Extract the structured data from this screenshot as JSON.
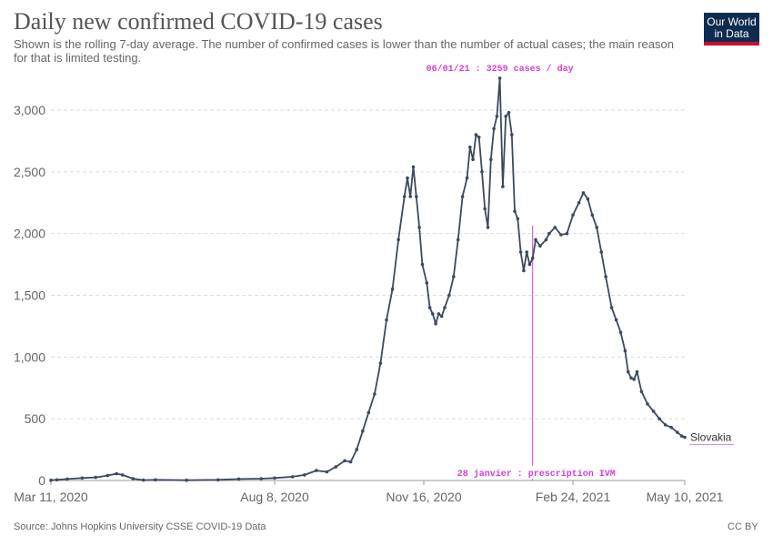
{
  "header": {
    "title": "Daily new confirmed COVID-19 cases",
    "subtitle": "Shown is the rolling 7-day average. The number of confirmed cases is lower than the number of actual cases; the main reason for that is limited testing.",
    "logo_line1": "Our World",
    "logo_line2": "in Data"
  },
  "footer": {
    "source": "Source: Johns Hopkins University CSSE COVID-19 Data",
    "license": "CC BY"
  },
  "colors": {
    "line": "#3c4a5e",
    "annotation": "#d33ed3",
    "grid": "#dddddd",
    "axis_text": "#666666"
  },
  "chart_data": {
    "type": "line",
    "title": "Daily new confirmed COVID-19 cases",
    "ylim": [
      0,
      3000
    ],
    "y_ticks": [
      0,
      500,
      1000,
      1500,
      2000,
      2500,
      3000
    ],
    "y_tick_labels": [
      "0",
      "500",
      "1,000",
      "1,500",
      "2,000",
      "2,500",
      "3,000"
    ],
    "x_ticks": [
      "2020-03-11",
      "2020-08-08",
      "2020-11-16",
      "2021-02-24",
      "2021-05-10"
    ],
    "x_tick_labels": [
      "Mar 11, 2020",
      "Aug 8, 2020",
      "Nov 16, 2020",
      "Feb 24, 2021",
      "May 10, 2021"
    ],
    "grid": "horizontal dashed",
    "series": [
      {
        "name": "Slovakia",
        "points": [
          [
            "2020-03-11",
            2
          ],
          [
            "2020-03-15",
            5
          ],
          [
            "2020-03-22",
            12
          ],
          [
            "2020-04-01",
            20
          ],
          [
            "2020-04-10",
            25
          ],
          [
            "2020-04-18",
            40
          ],
          [
            "2020-04-24",
            55
          ],
          [
            "2020-04-28",
            45
          ],
          [
            "2020-05-05",
            15
          ],
          [
            "2020-05-12",
            3
          ],
          [
            "2020-05-20",
            5
          ],
          [
            "2020-06-10",
            2
          ],
          [
            "2020-07-01",
            5
          ],
          [
            "2020-07-15",
            12
          ],
          [
            "2020-07-30",
            15
          ],
          [
            "2020-08-08",
            20
          ],
          [
            "2020-08-20",
            30
          ],
          [
            "2020-08-28",
            45
          ],
          [
            "2020-09-05",
            80
          ],
          [
            "2020-09-12",
            70
          ],
          [
            "2020-09-18",
            110
          ],
          [
            "2020-09-24",
            160
          ],
          [
            "2020-09-28",
            150
          ],
          [
            "2020-10-02",
            250
          ],
          [
            "2020-10-06",
            400
          ],
          [
            "2020-10-10",
            550
          ],
          [
            "2020-10-14",
            700
          ],
          [
            "2020-10-18",
            950
          ],
          [
            "2020-10-22",
            1300
          ],
          [
            "2020-10-26",
            1550
          ],
          [
            "2020-10-30",
            1950
          ],
          [
            "2020-11-03",
            2300
          ],
          [
            "2020-11-05",
            2450
          ],
          [
            "2020-11-07",
            2300
          ],
          [
            "2020-11-09",
            2540
          ],
          [
            "2020-11-11",
            2300
          ],
          [
            "2020-11-13",
            2050
          ],
          [
            "2020-11-15",
            1750
          ],
          [
            "2020-11-18",
            1600
          ],
          [
            "2020-11-20",
            1400
          ],
          [
            "2020-11-22",
            1350
          ],
          [
            "2020-11-24",
            1270
          ],
          [
            "2020-11-26",
            1350
          ],
          [
            "2020-11-28",
            1330
          ],
          [
            "2020-11-30",
            1400
          ],
          [
            "2020-12-03",
            1500
          ],
          [
            "2020-12-06",
            1650
          ],
          [
            "2020-12-09",
            1950
          ],
          [
            "2020-12-12",
            2300
          ],
          [
            "2020-12-15",
            2450
          ],
          [
            "2020-12-17",
            2700
          ],
          [
            "2020-12-19",
            2600
          ],
          [
            "2020-12-21",
            2800
          ],
          [
            "2020-12-23",
            2780
          ],
          [
            "2020-12-25",
            2500
          ],
          [
            "2020-12-27",
            2200
          ],
          [
            "2020-12-29",
            2050
          ],
          [
            "2020-12-31",
            2600
          ],
          [
            "2021-01-02",
            2850
          ],
          [
            "2021-01-04",
            2950
          ],
          [
            "2021-01-06",
            3259
          ],
          [
            "2021-01-08",
            2380
          ],
          [
            "2021-01-10",
            2950
          ],
          [
            "2021-01-12",
            2980
          ],
          [
            "2021-01-14",
            2800
          ],
          [
            "2021-01-16",
            2180
          ],
          [
            "2021-01-18",
            2120
          ],
          [
            "2021-01-20",
            1850
          ],
          [
            "2021-01-22",
            1700
          ],
          [
            "2021-01-24",
            1850
          ],
          [
            "2021-01-26",
            1750
          ],
          [
            "2021-01-28",
            1800
          ],
          [
            "2021-01-30",
            1950
          ],
          [
            "2021-02-02",
            1900
          ],
          [
            "2021-02-06",
            1950
          ],
          [
            "2021-02-08",
            2000
          ],
          [
            "2021-02-12",
            2050
          ],
          [
            "2021-02-16",
            1990
          ],
          [
            "2021-02-20",
            2000
          ],
          [
            "2021-02-24",
            2150
          ],
          [
            "2021-02-28",
            2250
          ],
          [
            "2021-03-03",
            2330
          ],
          [
            "2021-03-06",
            2280
          ],
          [
            "2021-03-09",
            2150
          ],
          [
            "2021-03-12",
            2050
          ],
          [
            "2021-03-15",
            1850
          ],
          [
            "2021-03-18",
            1650
          ],
          [
            "2021-03-22",
            1400
          ],
          [
            "2021-03-25",
            1300
          ],
          [
            "2021-03-28",
            1200
          ],
          [
            "2021-03-31",
            1050
          ],
          [
            "2021-04-02",
            880
          ],
          [
            "2021-04-04",
            830
          ],
          [
            "2021-04-06",
            820
          ],
          [
            "2021-04-08",
            880
          ],
          [
            "2021-04-11",
            720
          ],
          [
            "2021-04-15",
            620
          ],
          [
            "2021-04-19",
            560
          ],
          [
            "2021-04-23",
            500
          ],
          [
            "2021-04-27",
            450
          ],
          [
            "2021-05-01",
            430
          ],
          [
            "2021-05-05",
            390
          ],
          [
            "2021-05-08",
            360
          ],
          [
            "2021-05-10",
            350
          ]
        ]
      }
    ],
    "series_label": "Slovakia",
    "annotations": [
      {
        "date": "2021-01-06",
        "text": "06/01/21 : 3259 cases / day"
      },
      {
        "date": "2021-01-28",
        "text": "28 janvier : prescription IVM"
      }
    ]
  }
}
